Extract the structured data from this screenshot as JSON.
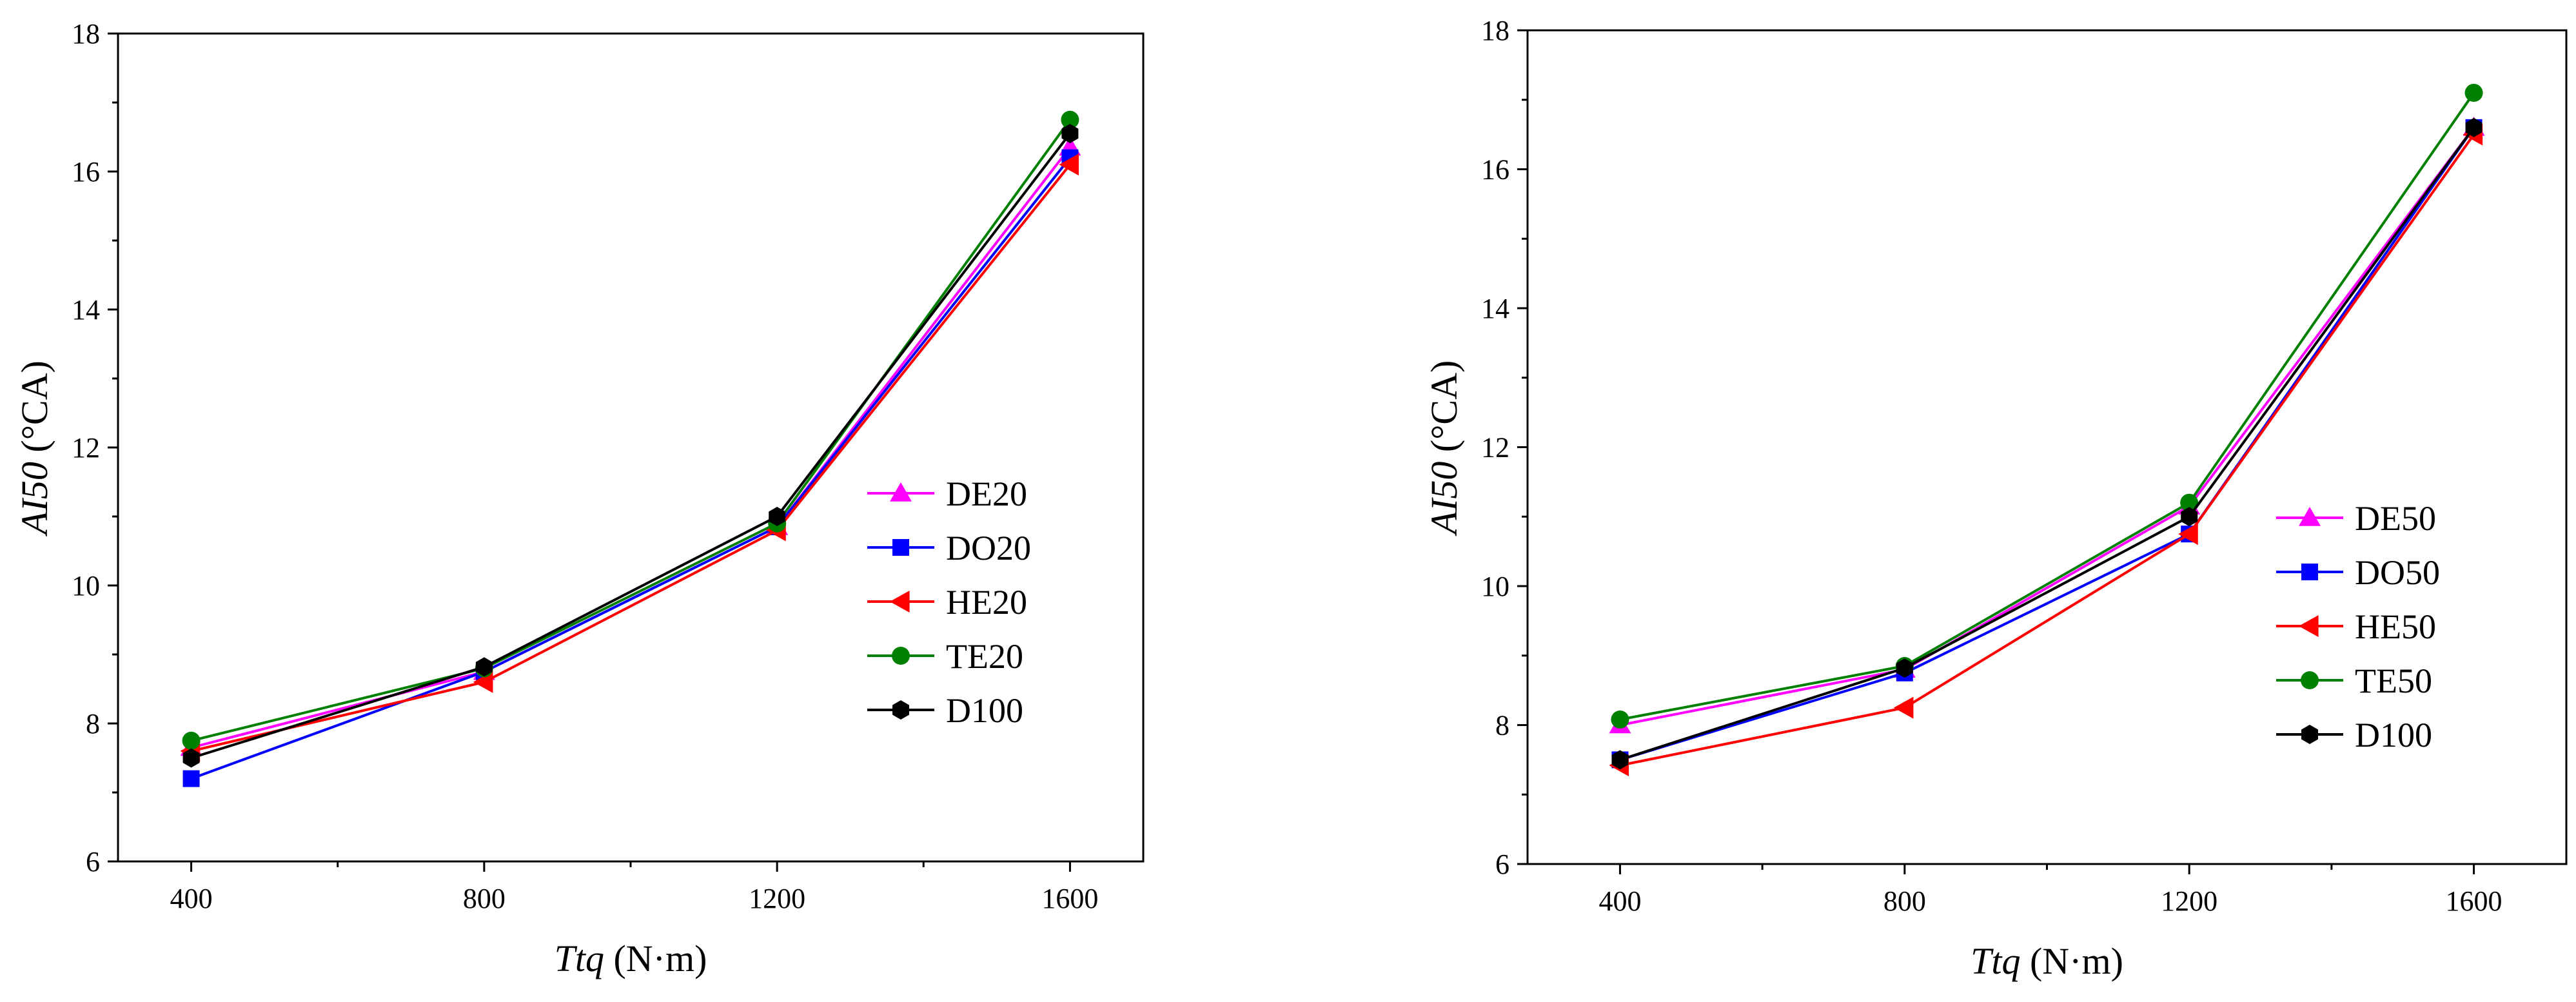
{
  "chart_data": [
    {
      "type": "line",
      "title": "",
      "xlabel_var": "Ttq",
      "xlabel_unit": " (N·m)",
      "ylabel_var": "AI50",
      "ylabel_unit": " (°CA)",
      "xlim": [
        300,
        1700
      ],
      "ylim": [
        6,
        18
      ],
      "x": [
        400,
        800,
        1200,
        1600
      ],
      "xticks": [
        400,
        800,
        1200,
        1600
      ],
      "xticks_labels": [
        "400",
        "800",
        "1200",
        "1600"
      ],
      "yticks": [
        6,
        8,
        10,
        12,
        14,
        16,
        18
      ],
      "yticks_labels": [
        "6",
        "8",
        "10",
        "12",
        "14",
        "16",
        "18"
      ],
      "legend_position": "center-right",
      "grid": false,
      "series": [
        {
          "name": "DE20",
          "color": "#ff00ff",
          "marker": "triangle-up",
          "values": [
            7.65,
            8.75,
            10.85,
            16.35
          ]
        },
        {
          "name": "DO20",
          "color": "#0000ff",
          "marker": "square",
          "values": [
            7.2,
            8.75,
            10.85,
            16.2
          ]
        },
        {
          "name": "HE20",
          "color": "#ff0000",
          "marker": "triangle-left",
          "values": [
            7.6,
            8.6,
            10.8,
            16.1
          ]
        },
        {
          "name": "TE20",
          "color": "#008000",
          "marker": "circle",
          "values": [
            7.75,
            8.8,
            10.9,
            16.75
          ]
        },
        {
          "name": "D100",
          "color": "#000000",
          "marker": "hexagon",
          "values": [
            7.5,
            8.82,
            11.0,
            16.55
          ]
        }
      ]
    },
    {
      "type": "line",
      "title": "",
      "xlabel_var": "Ttq",
      "xlabel_unit": " (N·m)",
      "ylabel_var": "AI50",
      "ylabel_unit": " (°CA)",
      "xlim": [
        270,
        1730
      ],
      "ylim": [
        6,
        18
      ],
      "x": [
        400,
        800,
        1200,
        1600
      ],
      "xticks": [
        400,
        800,
        1200,
        1600
      ],
      "xticks_labels": [
        "400",
        "800",
        "1200",
        "1600"
      ],
      "yticks": [
        6,
        8,
        10,
        12,
        14,
        16,
        18
      ],
      "yticks_labels": [
        "6",
        "8",
        "10",
        "12",
        "14",
        "16",
        "18"
      ],
      "legend_position": "center-right",
      "grid": false,
      "series": [
        {
          "name": "DE50",
          "color": "#ff00ff",
          "marker": "triangle-up",
          "values": [
            8.0,
            8.8,
            11.15,
            16.6
          ]
        },
        {
          "name": "DO50",
          "color": "#0000ff",
          "marker": "square",
          "values": [
            7.5,
            8.75,
            10.75,
            16.6
          ]
        },
        {
          "name": "HE50",
          "color": "#ff0000",
          "marker": "triangle-left",
          "values": [
            7.42,
            8.25,
            10.75,
            16.5
          ]
        },
        {
          "name": "TE50",
          "color": "#008000",
          "marker": "circle",
          "values": [
            8.08,
            8.85,
            11.2,
            17.1
          ]
        },
        {
          "name": "D100",
          "color": "#000000",
          "marker": "hexagon",
          "values": [
            7.5,
            8.82,
            11.0,
            16.6
          ]
        }
      ]
    }
  ]
}
